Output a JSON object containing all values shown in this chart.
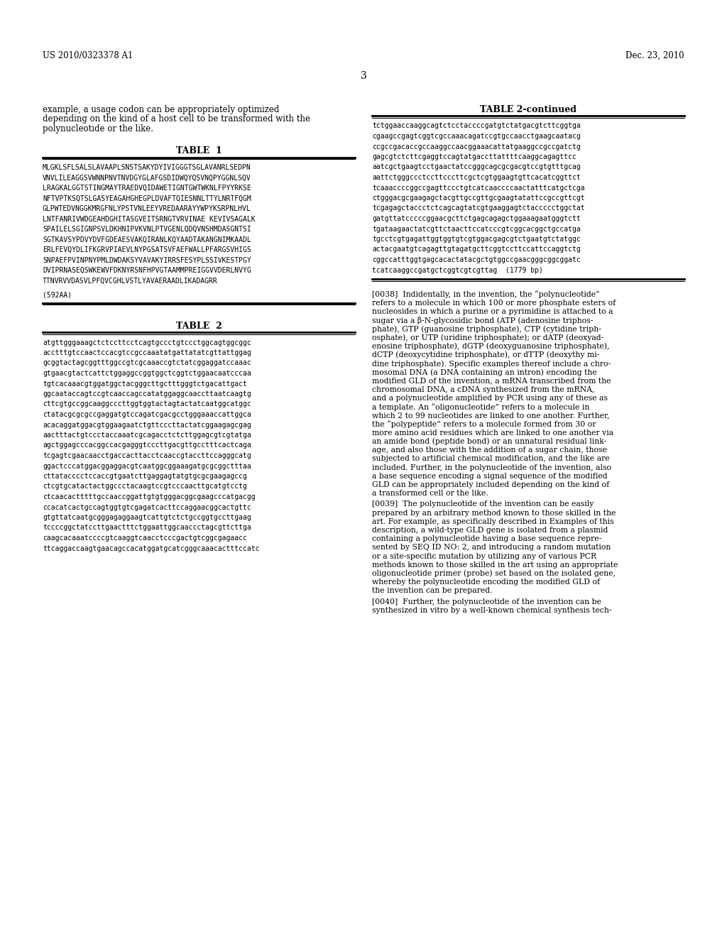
{
  "background_color": "#ffffff",
  "header_left": "US 2010/0323378 A1",
  "header_right": "Dec. 23, 2010",
  "page_number": "3",
  "left_intro_lines": [
    "example, a usage codon can be appropriately optimized",
    "depending on the kind of a host cell to be transformed with the",
    "polynucleotide or the like."
  ],
  "table1_title": "TABLE  1",
  "table1_content": [
    "MLGKLSFLSALSLAVAAPLSNSTSAKYDYIVIGGGTSGLAVANRLSEDPN",
    "VNVLILEAGGSVWNNPNVTNVDGYGLAFGSDIDWQYQSVNQPYGGNLSQV",
    "LRAGKALGGTSTINGMAYTRAEDVQIDAWETIGNTGWTWKNLFPYYRKSE",
    "NFTVPTKSQTSLGASYEAGAHGHEGPLDVAFTQIESNNLTTYLNRTFQGM",
    "GLPWTEDVNGGKMRGFNLYPSTVNLEEYVREDAARAYYWPYKSRPNLHVL",
    "LNTFANRIVWDGEAHDGHITASGVEITSRNGTVRVINAE KEVIVSAGALK",
    "SPAILELSGIGNPSVLDKHNIPVKVNLPTVGENLQDQVNSHMDASGNTSI",
    "SGTKAVSYPDVYDVFGDEAESVAKQIRANLKQYAADTAKANGNIMKAADL",
    "ERLFEVQYDLIFKGRVPIAEVLNYPGSATSVFAEFWALLPFARGSVHIGS",
    "SNPAEFPVINPNYPMLDWDAKSYVAVAKYIRRSFESYPLSSIVKESTPGY",
    "DVIPRNASEQSWKEWVFDKNYRSNFHPVGTAAMMPREIGGVVDERLNVYG",
    "TTNVRVVDASVLPFQVCGHLVSTLYAVAERAADLIKADAGRR",
    "",
    "(592AA)"
  ],
  "table2_title": "TABLE  2",
  "table2_content": [
    "atgttgggaaagctctccttcctcagtgccctgtccctggcagtggcggc",
    "acctttgtccaactccacgtccgccaaatatgattatatcgttattggag",
    "gcggtactagcggtttggccgtcgcaaaccgtctatcggaggatccaaac",
    "gtgaacgtactcattctggaggccggtggctcggtctggaacaatcccaa",
    "tgtcacaaacgtggatggctacgggcttgctttgggtctgacattgact",
    "ggcaataccagtccgtcaaccagccatatggaggcaaccttaatcaagtg",
    "cttcgtgccggcaaggcccttggtggtactagtactatcaatggcatggc",
    "ctatacgcgcgccgaggatgtccagatcgacgcctgggaaaccattggca",
    "acacaggatggacgtggaagaatctgttcccttactatcggaagagcgag",
    "aactttactgtccctaccaaatcgcagacctctcttggagcgtcgtatga",
    "agctggagcccacggccacgagggtcccttgacgttgcctttcactcaga",
    "tcgagtcgaacaacctgaccacttacctcaaccgtaccttccagggcatg",
    "ggactcccatggacggaggacgtcaatggcggaaagatgcgcggctttaa",
    "cttatacccctccaccgtgaatcttgaggagtatgtgcgcgaagagccg",
    "ctcgtgcatactactggccctacaagtccgtcccaacttgcatgtcctg",
    "ctcaacactttttgccaaccggattgtgtgggacggcgaagcccatgacgg",
    "ccacatcactgccagtggtgtcgagatcacttccaggaacggcactgttc",
    "gtgttatcaatgcgggagaggaagtcattgtctctgccggtgccttgaag",
    "tccccggctatccttgaactttctggaattggcaaccctagcgttcttga",
    "caagcacaaatccccgtcaaggtcaacctcccgactgtcggcgagaacc",
    "ttcaggaccaagtgaacagccacatggatgcatcgggcaaacactttccatc"
  ],
  "table2cont_title": "TABLE 2-continued",
  "table2cont_content": [
    "tctggaaccaaggcagtctcctaccccgatgtctatgacgtcttcggtga",
    "cgaagccgagtcggtcgccaaacagatccgtgccaacctgaagcaatacg",
    "ccgccgacaccgccaaggccaacggaaacattatgaaggccgccgatctg",
    "gagcgtctcttcgaggtccagtatgaccttattttcaaggcagagttcc",
    "aatcgctgaagtcctgaactatccgggcagcgcgacgtccgtgtttgcag",
    "aattctgggccctccttcccttcgctcgtggaagtgttcacatcggttct",
    "tcaaaccccggccgagttccctgtcatcaaccccaactatttcatgctcga",
    "ctgggacgcgaagagctacgttgccgttgcgaagtatattccgccgttcgt",
    "tcgagagctaccctctcagcagtatcgtgaaggagtctaccccctggctat",
    "gatgttatcccccggaacgcttctgagcagagctggaaagaatgggtctt",
    "tgataagaactatcgttctaacttccatcccgtcggcacggctgccatga",
    "tgcctcgtgagattggtggtgtcgtggacgagcgtctgaatgtctatggc",
    "actacgaatgtcagagttgtagatgcttcggtccttccattccaggtctg",
    "cggccatttggtgagcacactatacgctgtggccgaacgggcggcggatc",
    "tcatcaaggccgatgctcggtcgtcgttag  (1779 bp)"
  ],
  "para0038_lines": [
    "[0038]  Indidentally, in the invention, the “polynucleotide”",
    "refers to a molecule in which 100 or more phosphate esters of",
    "nucleosides in which a purine or a pyrimidine is attached to a",
    "sugar via a β-N-glycosidic bond (ATP (adenosine triphos-",
    "phate), GTP (guanosine triphosphate), CTP (cytidine triph-",
    "osphate), or UTP (uridine triphosphate); or dATP (deoxyad-",
    "enosine triphosphate), dGTP (deoxyguanosine triphosphate),",
    "dCTP (deoxycytidine triphosphate), or dTTP (deoxythy mi-",
    "dine triphosphate). Specific examples thereof include a chro-",
    "mosomal DNA (a DNA containing an intron) encoding the",
    "modified GLD of the invention, a mRNA transcribed from the",
    "chromosomal DNA, a cDNA synthesized from the mRNA,",
    "and a polynucleotide amplified by PCR using any of these as",
    "a template. An “oligonucleotide” refers to a molecule in",
    "which 2 to 99 nucleotides are linked to one another. Further,",
    "the “polypeptide” refers to a molecule formed from 30 or",
    "more amino acid residues which are linked to one another via",
    "an amide bond (peptide bond) or an unnatural residual link-",
    "age, and also those with the addition of a sugar chain, those",
    "subjected to artificial chemical modification, and the like are",
    "included. Further, in the polynucleotide of the invention, also",
    "a base sequence encoding a signal sequence of the modified",
    "GLD can be appropriately included depending on the kind of",
    "a transformed cell or the like."
  ],
  "para0039_lines": [
    "[0039]  The polynucleotide of the invention can be easily",
    "prepared by an arbitrary method known to those skilled in the",
    "art. For example, as specifically described in Examples of this",
    "description, a wild-type GLD gene is isolated from a plasmid",
    "containing a polynucleotide having a base sequence repre-",
    "sented by SEQ ID NO: 2, and introducing a random mutation",
    "or a site-specific mutation by utilizing any of various PCR",
    "methods known to those skilled in the art using an appropriate",
    "oligonucleotide primer (probe) set based on the isolated gene,",
    "whereby the polynucleotide encoding the modified GLD of",
    "the invention can be prepared."
  ],
  "para0040_lines": [
    "[0040]  Further, the polynucleotide of the invention can be",
    "synthesized in vitro by a well-known chemical synthesis tech-"
  ]
}
